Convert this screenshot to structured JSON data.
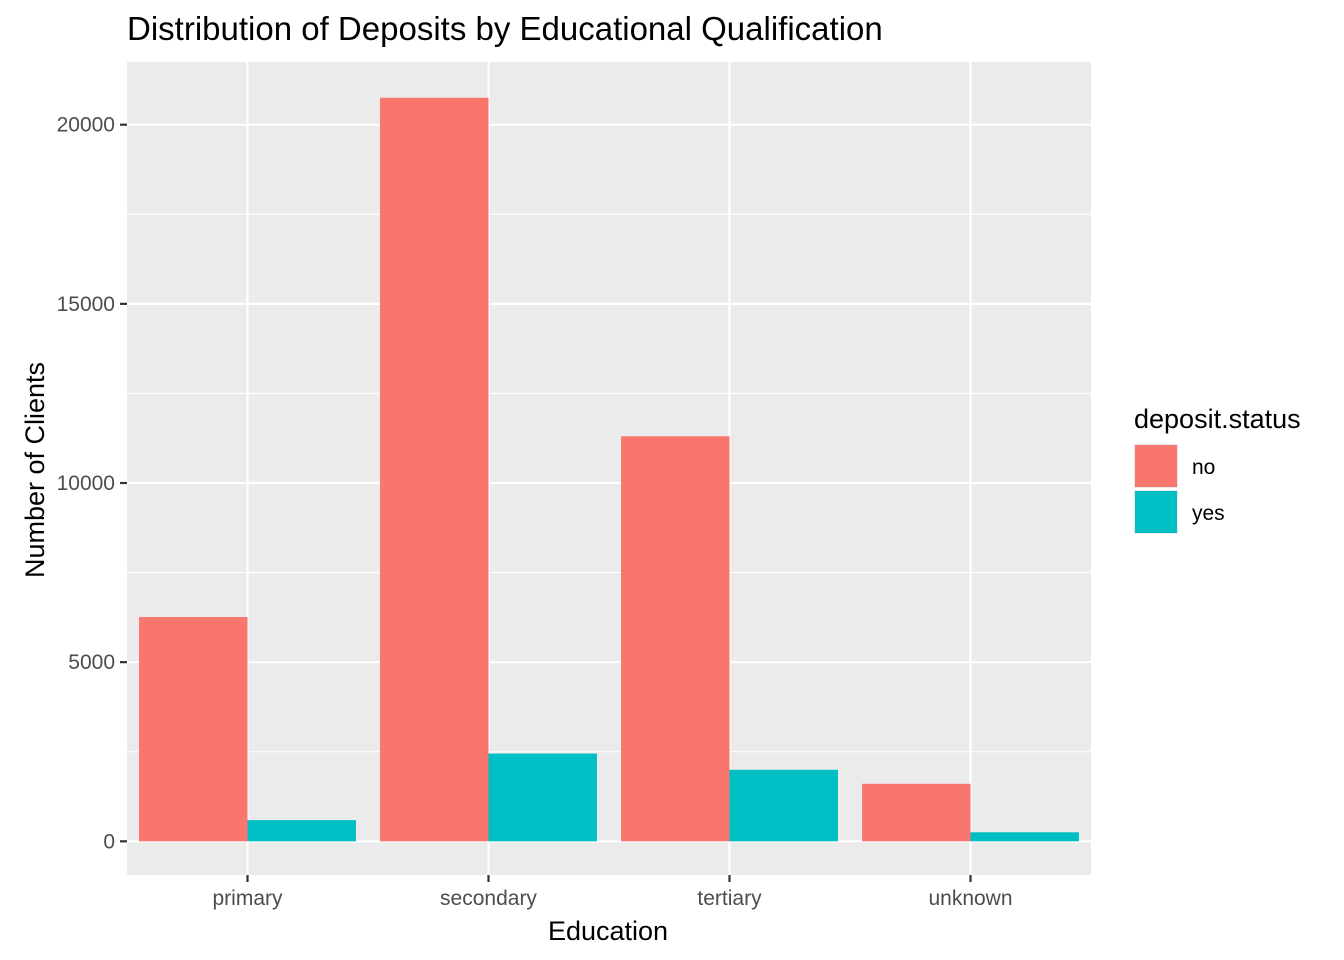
{
  "chart_data": {
    "type": "bar",
    "title": "Distribution of Deposits by Educational Qualification",
    "xlabel": "Education",
    "ylabel": "Number of Clients",
    "categories": [
      "primary",
      "secondary",
      "tertiary",
      "unknown"
    ],
    "series": [
      {
        "name": "no",
        "color": "#F8766D",
        "values": [
          6260,
          20752,
          11305,
          1605
        ]
      },
      {
        "name": "yes",
        "color": "#00BFC4",
        "values": [
          591,
          2450,
          1996,
          252
        ]
      }
    ],
    "ylim": [
      -940,
      21750
    ],
    "yticks": [
      0,
      5000,
      10000,
      15000,
      20000
    ],
    "ytick_labels": [
      "0",
      "5000",
      "10000",
      "15000",
      "20000"
    ],
    "yminor": [
      2500,
      7500,
      12500,
      17500
    ],
    "grid": true,
    "legend": {
      "title": "deposit.status",
      "position": "right"
    },
    "bar_layout": "dodge"
  }
}
